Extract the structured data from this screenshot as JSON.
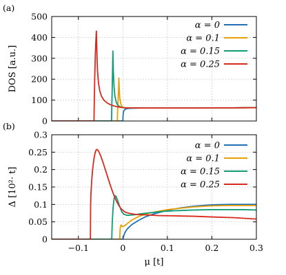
{
  "chart_data": [
    {
      "panel_label": "(a)",
      "type": "line",
      "ylabel": "DOS [a.u.]",
      "xlim": [
        -0.16,
        0.3
      ],
      "ylim": [
        0,
        500
      ],
      "xticks": [
        -0.1,
        0,
        0.1,
        0.2,
        0.3
      ],
      "yticks": [
        0,
        100,
        200,
        300,
        400,
        500
      ],
      "ytick_labels": [
        "0",
        "100",
        "200",
        "300",
        "400",
        "500"
      ],
      "legend_position": "top-right",
      "series": [
        {
          "name": "α = 0",
          "color": "#1f6fb5",
          "x": [
            -0.16,
            0.0,
            0.0005,
            0.001,
            0.002,
            0.004,
            0.007,
            0.012,
            0.02,
            0.04,
            0.08,
            0.12,
            0.16,
            0.2,
            0.24,
            0.28,
            0.3
          ],
          "y": [
            0,
            0,
            30,
            40,
            48,
            54,
            58,
            60,
            61,
            62,
            62,
            62,
            63,
            63,
            63,
            64,
            64
          ]
        },
        {
          "name": "α = 0.1",
          "color": "#e8a000",
          "x": [
            -0.16,
            -0.0125,
            -0.012,
            -0.011,
            -0.0095,
            -0.009,
            -0.008,
            -0.007,
            -0.005,
            -0.003,
            0.0,
            0.005,
            0.02,
            0.05,
            0.1,
            0.15,
            0.2,
            0.25,
            0.3
          ],
          "y": [
            0,
            0,
            40,
            90,
            160,
            205,
            150,
            110,
            85,
            72,
            66,
            63,
            62,
            62,
            62,
            62,
            63,
            63,
            64
          ]
        },
        {
          "name": "α = 0.15",
          "color": "#0f9b74",
          "x": [
            -0.16,
            -0.0255,
            -0.025,
            -0.024,
            -0.023,
            -0.0225,
            -0.0215,
            -0.02,
            -0.018,
            -0.015,
            -0.012,
            -0.008,
            -0.004,
            0.0,
            0.01,
            0.05,
            0.1,
            0.15,
            0.2,
            0.25,
            0.3
          ],
          "y": [
            0,
            0,
            60,
            150,
            260,
            335,
            240,
            170,
            120,
            90,
            78,
            70,
            66,
            64,
            63,
            62,
            62,
            62,
            63,
            63,
            64
          ]
        },
        {
          "name": "α = 0.25",
          "color": "#d9281c",
          "x": [
            -0.16,
            -0.065,
            -0.0645,
            -0.064,
            -0.063,
            -0.062,
            -0.061,
            -0.06,
            -0.0595,
            -0.059,
            -0.058,
            -0.057,
            -0.055,
            -0.052,
            -0.048,
            -0.042,
            -0.035,
            -0.028,
            -0.02,
            -0.012,
            -0.004,
            0.005,
            0.02,
            0.05,
            0.1,
            0.15,
            0.2,
            0.25,
            0.3
          ],
          "y": [
            0,
            0,
            60,
            130,
            230,
            310,
            370,
            415,
            430,
            380,
            300,
            240,
            185,
            145,
            118,
            98,
            86,
            78,
            72,
            68,
            65,
            63,
            63,
            62,
            62,
            62,
            63,
            63,
            64
          ]
        }
      ]
    },
    {
      "panel_label": "(b)",
      "type": "line",
      "xlabel": "μ [t]",
      "ylabel": "Δ [10²· t]",
      "xlim": [
        -0.16,
        0.3
      ],
      "ylim": [
        0,
        0.3
      ],
      "xticks": [
        -0.1,
        0,
        0.1,
        0.2,
        0.3
      ],
      "xtick_labels": [
        "−0.1",
        "0",
        "0.1",
        "0.2",
        "0.3"
      ],
      "yticks": [
        0,
        0.05,
        0.1,
        0.15,
        0.2,
        0.25,
        0.3
      ],
      "ytick_labels": [
        "0",
        "0.05",
        "0.1",
        "0.15",
        "0.2",
        "0.25",
        "0.3"
      ],
      "legend_position": "top-right",
      "series": [
        {
          "name": "α = 0",
          "color": "#1f6fb5",
          "x": [
            -0.16,
            0.0,
            0.002,
            0.005,
            0.01,
            0.02,
            0.035,
            0.05,
            0.07,
            0.1,
            0.13,
            0.16,
            0.2,
            0.24,
            0.27,
            0.3
          ],
          "y": [
            0,
            0,
            0.01,
            0.02,
            0.03,
            0.042,
            0.054,
            0.064,
            0.073,
            0.083,
            0.09,
            0.095,
            0.099,
            0.1,
            0.1,
            0.1
          ]
        },
        {
          "name": "α = 0.1",
          "color": "#e8a000",
          "x": [
            -0.16,
            -0.007,
            -0.0065,
            -0.006,
            -0.005,
            -0.004,
            -0.003,
            -0.002,
            -0.0005,
            0.002,
            0.006,
            0.012,
            0.02,
            0.035,
            0.05,
            0.07,
            0.1,
            0.13,
            0.16,
            0.2,
            0.24,
            0.27,
            0.3
          ],
          "y": [
            0,
            0,
            0.02,
            0.032,
            0.038,
            0.041,
            0.04,
            0.037,
            0.036,
            0.037,
            0.041,
            0.047,
            0.055,
            0.065,
            0.072,
            0.078,
            0.085,
            0.089,
            0.093,
            0.096,
            0.097,
            0.097,
            0.097
          ]
        },
        {
          "name": "α = 0.15",
          "color": "#0f9b74",
          "x": [
            -0.16,
            -0.025,
            -0.024,
            -0.022,
            -0.02,
            -0.018,
            -0.016,
            -0.014,
            -0.012,
            -0.01,
            -0.008,
            -0.005,
            -0.002,
            0.002,
            0.008,
            0.015,
            0.025,
            0.04,
            0.06,
            0.09,
            0.12,
            0.16,
            0.2,
            0.24,
            0.27,
            0.3
          ],
          "y": [
            0,
            0,
            0.045,
            0.09,
            0.115,
            0.125,
            0.124,
            0.119,
            0.112,
            0.105,
            0.097,
            0.087,
            0.078,
            0.072,
            0.069,
            0.069,
            0.07,
            0.073,
            0.076,
            0.08,
            0.082,
            0.084,
            0.085,
            0.085,
            0.085,
            0.084
          ]
        },
        {
          "name": "α = 0.25",
          "color": "#d9281c",
          "x": [
            -0.16,
            -0.073,
            -0.0725,
            -0.072,
            -0.07,
            -0.068,
            -0.065,
            -0.062,
            -0.06,
            -0.058,
            -0.055,
            -0.05,
            -0.045,
            -0.04,
            -0.035,
            -0.03,
            -0.025,
            -0.02,
            -0.015,
            -0.01,
            -0.005,
            0.0,
            0.005,
            0.012,
            0.02,
            0.03,
            0.05,
            0.08,
            0.12,
            0.16,
            0.2,
            0.25,
            0.3
          ],
          "y": [
            0,
            0,
            0.09,
            0.125,
            0.17,
            0.2,
            0.232,
            0.25,
            0.257,
            0.258,
            0.254,
            0.24,
            0.222,
            0.202,
            0.182,
            0.162,
            0.143,
            0.126,
            0.111,
            0.099,
            0.089,
            0.083,
            0.078,
            0.075,
            0.073,
            0.071,
            0.07,
            0.068,
            0.067,
            0.066,
            0.064,
            0.062,
            0.058
          ]
        }
      ]
    }
  ]
}
